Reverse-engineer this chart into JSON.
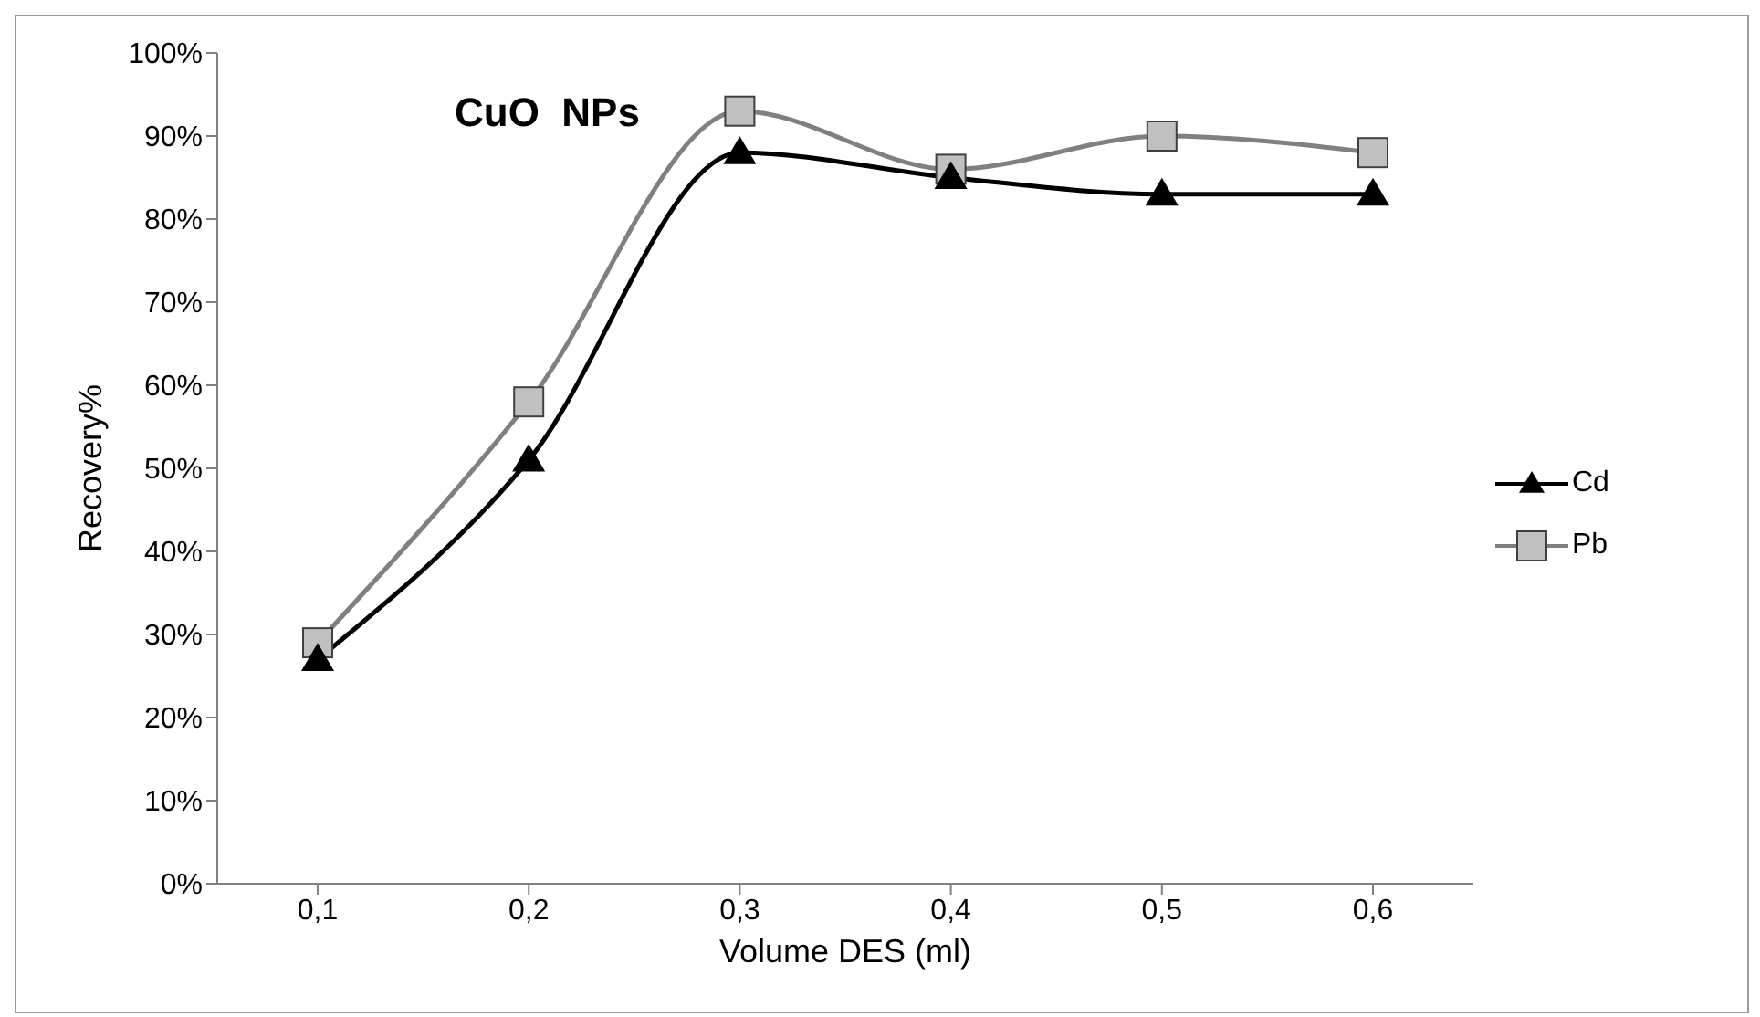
{
  "chart_data": {
    "type": "line",
    "title": "CuO  NPs",
    "xlabel": "Volume DES (ml)",
    "ylabel": "Recovery%",
    "categories": [
      "0,1",
      "0,2",
      "0,3",
      "0,4",
      "0,5",
      "0,6"
    ],
    "series": [
      {
        "name": "Cd",
        "color": "#000000",
        "marker": "triangle",
        "values": [
          27,
          51,
          88,
          85,
          83,
          83
        ]
      },
      {
        "name": "Pb",
        "color": "#808080",
        "marker": "square",
        "values": [
          29,
          58,
          93,
          86,
          90,
          88
        ]
      }
    ],
    "ylim": [
      0,
      100
    ],
    "yticks": [
      {
        "value": 0,
        "label": "0%"
      },
      {
        "value": 10,
        "label": "10%"
      },
      {
        "value": 20,
        "label": "20%"
      },
      {
        "value": 30,
        "label": "30%"
      },
      {
        "value": 40,
        "label": "40%"
      },
      {
        "value": 50,
        "label": "50%"
      },
      {
        "value": 60,
        "label": "60%"
      },
      {
        "value": 70,
        "label": "70%"
      },
      {
        "value": 80,
        "label": "80%"
      },
      {
        "value": 90,
        "label": "90%"
      },
      {
        "value": 100,
        "label": "100%"
      }
    ],
    "grid": false,
    "legend": "right",
    "line_style": "solid"
  }
}
